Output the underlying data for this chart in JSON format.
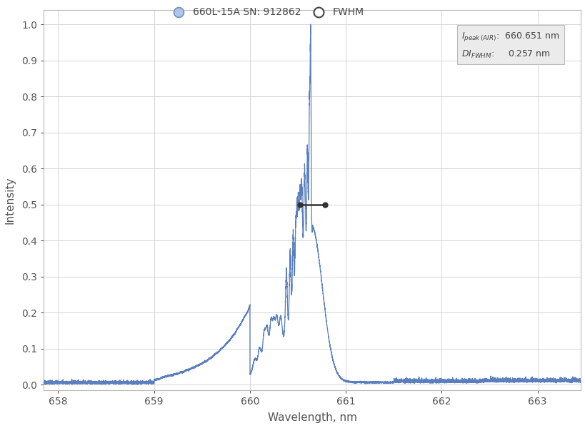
{
  "legend_label_1": "660L-15A SN: 912862",
  "legend_label_2": "FWHM",
  "xlabel": "Wavelength, nm",
  "ylabel": "Intensity",
  "xlim": [
    657.85,
    663.45
  ],
  "ylim": [
    -0.015,
    1.04
  ],
  "xticks": [
    658,
    659,
    660,
    661,
    662,
    663
  ],
  "yticks": [
    0.0,
    0.1,
    0.2,
    0.3,
    0.4,
    0.5,
    0.6,
    0.7,
    0.8,
    0.9,
    1.0
  ],
  "peak_wavelength": 660.651,
  "fwhm": 0.257,
  "fwhm_half_intensity": 0.5,
  "line_color": "#5b7fbe",
  "fwhm_line_color": "#333333",
  "background_color": "#ffffff",
  "grid_color": "#d0d0d0",
  "annotation_box_color": "#ebebeb",
  "info_peak_val": "660.651 nm",
  "info_fwhm_val": "0.257 nm"
}
